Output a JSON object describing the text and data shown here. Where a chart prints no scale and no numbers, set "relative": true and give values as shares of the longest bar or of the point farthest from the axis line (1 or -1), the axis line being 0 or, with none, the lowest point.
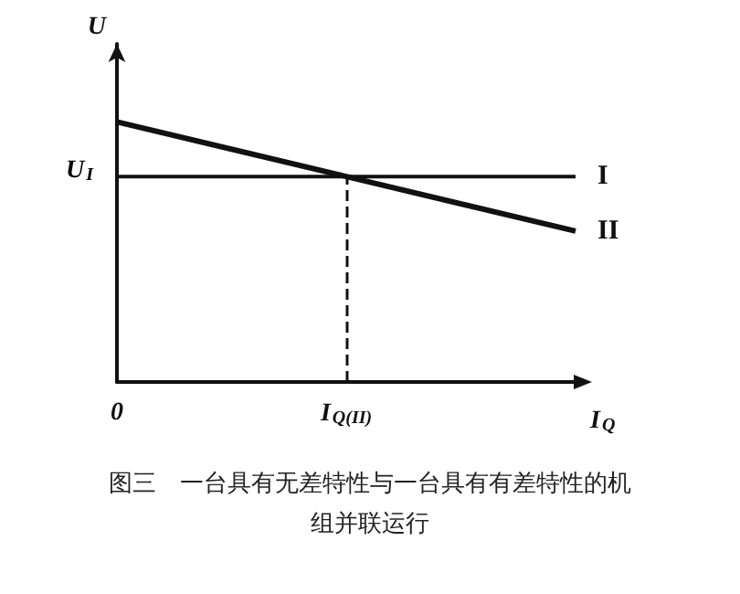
{
  "chart_data": {
    "type": "line",
    "title": "图三　一台具有无差特性与一台具有有差特性的机组并联运行",
    "xlabel": "I$_{Q}$",
    "ylabel": "U",
    "relative": true,
    "categories": [
      "0",
      "I$_{Q(II)}$",
      null
    ],
    "series": [
      {
        "name": "I",
        "color": "#111111",
        "values": [
          0.79,
          0.79,
          0.79
        ]
      },
      {
        "name": "II",
        "color": "#111111",
        "values": [
          1,
          0.79,
          0.58
        ]
      }
    ],
    "annotations": [
      "U$_{I}$"
    ],
    "ref_lines": [
      {
        "axis": "x",
        "value": "I$_{Q(II)}$",
        "line_style": "dashed",
        "color": "#111111"
      }
    ],
    "grid": false,
    "legend": false,
    "marker": "none"
  }
}
